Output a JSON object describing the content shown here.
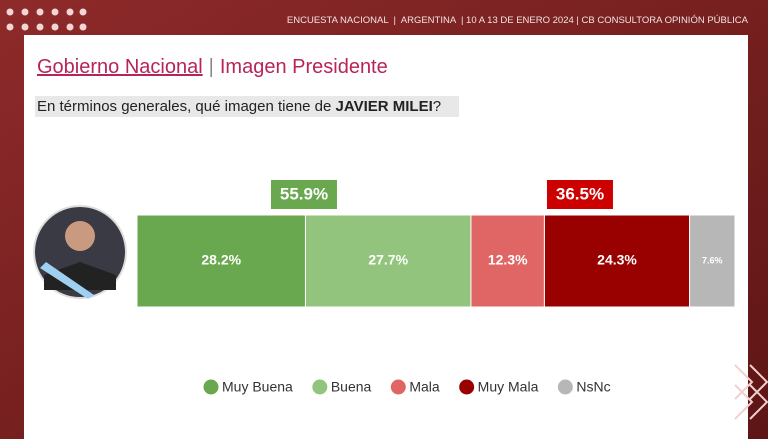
{
  "header": "ENCUESTA NACIONAL  |  ARGENTINA  | 10 A 13 DE ENERO 2024 | CB CONSULTORA OPINIÓN PÚBLICA",
  "chart_data": {
    "type": "stacked-bar",
    "title_parts": [
      "Gobierno Nacional",
      "|",
      "Imagen Presidente"
    ],
    "question_parts": [
      "En términos generales, qué imagen tiene de ",
      "JAVIER MILEI",
      "?"
    ],
    "series": [
      {
        "name": "Muy Buena",
        "color": "#6aa84f",
        "values": [
          28.2
        ],
        "value_labels": [
          "28.2%"
        ]
      },
      {
        "name": "Buena",
        "color": "#93c47d",
        "values": [
          27.7
        ],
        "value_labels": [
          "27.7%"
        ]
      },
      {
        "name": "Mala",
        "color": "#e06666",
        "values": [
          12.3
        ],
        "value_labels": [
          "12.3%"
        ]
      },
      {
        "name": "Muy Mala",
        "color": "#990000",
        "values": [
          24.3
        ],
        "value_labels": [
          "24.3%"
        ]
      },
      {
        "name": "NsNc",
        "color": "#b7b7b7",
        "values": [
          7.6
        ],
        "value_labels": [
          "7.6%"
        ]
      }
    ],
    "totals": [
      {
        "value": 55.9,
        "label": "55.9%",
        "color": "#6aa84f"
      },
      {
        "value": 36.5,
        "label": "36.5%",
        "color": "#cc0000"
      }
    ]
  }
}
